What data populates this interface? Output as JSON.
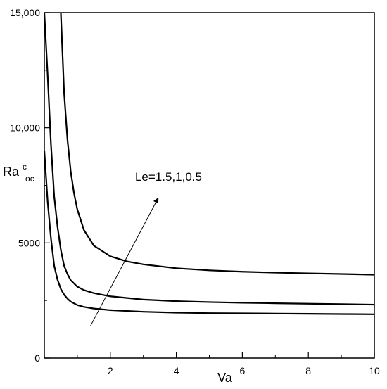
{
  "chart_data": {
    "type": "line",
    "title": "",
    "xlabel": "Va",
    "ylabel": {
      "base": "Ra",
      "sup": "c",
      "sub": "oc"
    },
    "xlim": [
      0,
      10
    ],
    "ylim": [
      0,
      15000
    ],
    "xticks": [
      {
        "value": 2,
        "label": "2"
      },
      {
        "value": 4,
        "label": "4"
      },
      {
        "value": 6,
        "label": "6"
      },
      {
        "value": 8,
        "label": "8"
      },
      {
        "value": 10,
        "label": "10"
      }
    ],
    "yticks": [
      {
        "value": 0,
        "label": "0"
      },
      {
        "value": 5000,
        "label": "5000"
      },
      {
        "value": 10000,
        "label": "10,000"
      },
      {
        "value": 15000,
        "label": "15,000"
      }
    ],
    "grid": false,
    "legend": "none",
    "series": [
      {
        "x": [
          0.5,
          0.6,
          0.7,
          0.8,
          0.9,
          1.0,
          1.2,
          1.5,
          2.0,
          2.5,
          3.0,
          4.0,
          5.0,
          6.0,
          7.0,
          8.0,
          9.0,
          10.0
        ],
        "values": [
          15000,
          11500,
          9500,
          8100,
          7150,
          6450,
          5560,
          4880,
          4420,
          4200,
          4070,
          3900,
          3810,
          3750,
          3710,
          3680,
          3650,
          3620
        ]
      },
      {
        "x": [
          0.0,
          0.1,
          0.2,
          0.3,
          0.4,
          0.5,
          0.6,
          0.7,
          0.8,
          1.0,
          1.2,
          1.5,
          2.0,
          3.0,
          4.0,
          5.0,
          6.0,
          7.0,
          8.0,
          9.0,
          10.0
        ],
        "values": [
          15000,
          12300,
          9300,
          7000,
          5700,
          4700,
          4000,
          3650,
          3380,
          3100,
          2950,
          2820,
          2680,
          2540,
          2470,
          2430,
          2400,
          2380,
          2360,
          2340,
          2320
        ]
      },
      {
        "x": [
          0.0,
          0.1,
          0.2,
          0.3,
          0.4,
          0.5,
          0.6,
          0.7,
          0.8,
          1.0,
          1.2,
          1.5,
          2.0,
          3.0,
          4.0,
          5.0,
          6.0,
          7.0,
          8.0,
          9.0,
          10.0
        ],
        "values": [
          9000,
          6800,
          5200,
          4000,
          3400,
          3000,
          2750,
          2580,
          2450,
          2300,
          2220,
          2150,
          2080,
          2010,
          1970,
          1950,
          1940,
          1930,
          1920,
          1910,
          1900
        ]
      }
    ],
    "annotations": [
      {
        "text": "Le=1.5,1,0.5",
        "x": 2.75,
        "y": 7700
      }
    ],
    "arrow": {
      "from": {
        "x": 1.4,
        "y": 1400
      },
      "to": {
        "x": 3.45,
        "y": 6950
      }
    }
  }
}
